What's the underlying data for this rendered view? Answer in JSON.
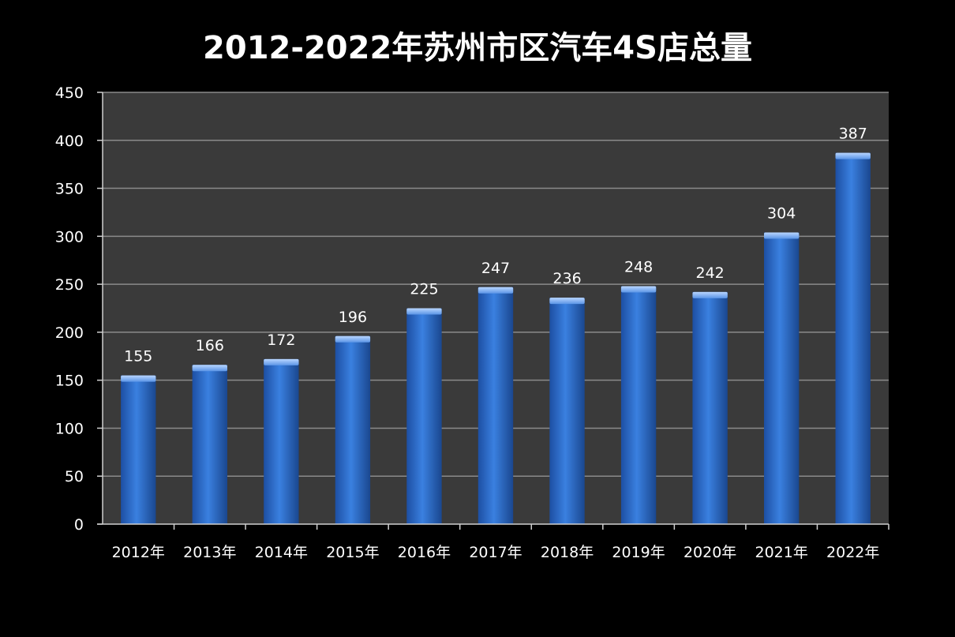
{
  "chart_data": {
    "type": "bar",
    "title": "2012-2022年苏州市区汽车4S店总量",
    "xlabel": "",
    "ylabel": "",
    "categories": [
      "2012年",
      "2013年",
      "2014年",
      "2015年",
      "2016年",
      "2017年",
      "2018年",
      "2019年",
      "2020年",
      "2021年",
      "2022年"
    ],
    "values": [
      155,
      166,
      172,
      196,
      225,
      247,
      236,
      248,
      242,
      304,
      387
    ],
    "ylim": [
      0,
      450
    ],
    "yticks": [
      0,
      50,
      100,
      150,
      200,
      250,
      300,
      350,
      400,
      450
    ],
    "grid": true,
    "legend": "none",
    "colors": {
      "background": "#000000",
      "plot_area": "#3a3a3a",
      "bar": "#2e6fd0",
      "bar_top": "#7fb0f0",
      "grid": "#8a8a8a",
      "text": "#ffffff"
    }
  }
}
